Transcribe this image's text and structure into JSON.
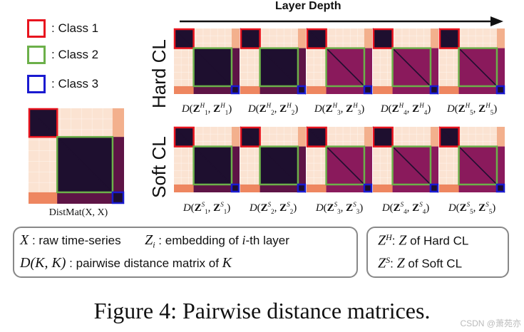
{
  "legend": [
    {
      "label": ": Class 1",
      "color": "#e8141e"
    },
    {
      "label": ": Class 2",
      "color": "#6cb04a"
    },
    {
      "label": ": Class 3",
      "color": "#1a1ad0"
    }
  ],
  "arrow_title": "Layer Depth",
  "rows": [
    {
      "label": "Hard CL",
      "sup": "H"
    },
    {
      "label": "Soft CL",
      "sup": "S"
    }
  ],
  "layers": [
    "1",
    "2",
    "3",
    "4",
    "5"
  ],
  "matrix_symbol": "D",
  "z_symbol": "Z",
  "input_caption": "DistMat(X, X)",
  "notes": {
    "line1_a_sym": "X",
    "line1_a_text": " : raw time-series",
    "line1_b_sym": "Z",
    "line1_b_sub": "i",
    "line1_b_text": " : embedding of ",
    "line1_b_i": "i",
    "line1_b_tail": "-th layer",
    "line2_sym": "D(K, K)",
    "line2_text": " : pairwise distance matrix of ",
    "line2_k": "K",
    "right1_sym": "Z",
    "right1_sup": "H",
    "right1_text": ": ",
    "right1_z": "Z",
    "right1_tail": " of Hard CL",
    "right2_sym": "Z",
    "right2_sup": "S",
    "right2_text": ": ",
    "right2_z": "Z",
    "right2_tail": " of Soft CL"
  },
  "figure_caption": "Figure 4: Pairwise distance matrices.",
  "watermark": "CSDN @萧苑亦",
  "colors": {
    "dark": "#1e0f2f",
    "plum": "#5e1446",
    "magenta": "#8a1a5c",
    "peach": "#f3b08d",
    "light": "#fbe3d2",
    "salmon": "#ee8660"
  }
}
